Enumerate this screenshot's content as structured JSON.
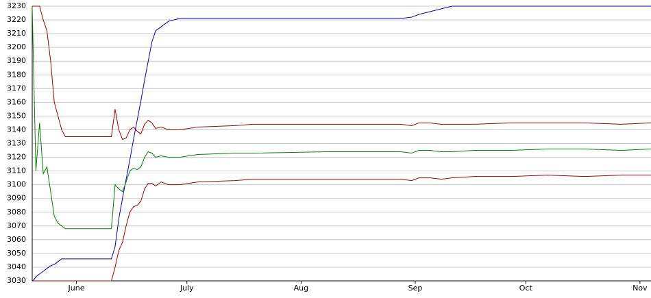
{
  "chart_data": {
    "type": "line",
    "x": [
      0,
      0.5,
      1,
      2,
      3,
      4,
      5,
      6,
      7,
      8,
      9,
      10,
      12,
      16,
      20,
      21.5,
      22.5,
      23.5,
      24.5,
      25.5,
      26.5,
      27.5,
      28.5,
      29.5,
      30.5,
      31.5,
      32.5,
      33.5,
      35,
      37,
      40,
      45,
      55,
      60,
      80,
      100,
      103,
      105,
      108,
      111,
      114,
      120,
      130,
      140,
      150,
      160,
      168
    ],
    "series": [
      {
        "color": "#0000b4",
        "values": [
          3030,
          3031,
          3033,
          3035,
          3037,
          3039,
          3041,
          3042,
          3044,
          3046,
          3046,
          3046,
          3046,
          3046,
          3046,
          3046,
          3055,
          3075,
          3090,
          3104,
          3118,
          3133,
          3147,
          3161,
          3176,
          3190,
          3204,
          3212,
          3215,
          3219,
          3221,
          3221,
          3221,
          3221,
          3221,
          3221,
          3222,
          3224,
          3226,
          3228,
          3230,
          3230,
          3230,
          3230,
          3230,
          3230,
          3230
        ]
      },
      {
        "color": "#a00000",
        "values": [
          3230,
          3230,
          3230,
          3230,
          3220,
          3212,
          3190,
          3160,
          3150,
          3140,
          3135,
          3135,
          3135,
          3135,
          3135,
          3135,
          3155,
          3140,
          3133,
          3134,
          3140,
          3142,
          3139,
          3137,
          3144,
          3147,
          3145,
          3141,
          3142,
          3140,
          3140,
          3142,
          3143,
          3144,
          3144,
          3144,
          3143,
          3145,
          3145,
          3144,
          3144,
          3144,
          3145,
          3145,
          3145,
          3144,
          3145
        ]
      },
      {
        "color": "#008000",
        "values": [
          3230,
          3170,
          3110,
          3145,
          3108,
          3113,
          3095,
          3077,
          3072,
          3070,
          3068,
          3068,
          3068,
          3068,
          3068,
          3068,
          3100,
          3097,
          3095,
          3102,
          3110,
          3112,
          3111,
          3113,
          3120,
          3124,
          3123,
          3120,
          3121,
          3120,
          3120,
          3122,
          3123,
          3123,
          3124,
          3124,
          3123,
          3125,
          3125,
          3124,
          3124,
          3125,
          3125,
          3126,
          3126,
          3125,
          3126
        ]
      },
      {
        "color": "#a00000",
        "values": [
          3030,
          3030,
          3030,
          3030,
          3030,
          3030,
          3030,
          3030,
          3030,
          3030,
          3030,
          3030,
          3030,
          3030,
          3030,
          3030,
          3040,
          3052,
          3058,
          3070,
          3080,
          3084,
          3085,
          3088,
          3097,
          3101,
          3101,
          3099,
          3102,
          3100,
          3100,
          3102,
          3103,
          3104,
          3104,
          3104,
          3103,
          3105,
          3105,
          3104,
          3105,
          3106,
          3106,
          3107,
          3106,
          3107,
          3107
        ]
      }
    ],
    "xlim": [
      0,
      168
    ],
    "xticks": [
      {
        "value": 12,
        "label": "June"
      },
      {
        "value": 42,
        "label": "July"
      },
      {
        "value": 73,
        "label": "Aug"
      },
      {
        "value": 104,
        "label": "Sep"
      },
      {
        "value": 134,
        "label": "Oct"
      },
      {
        "value": 165,
        "label": "Nov"
      }
    ],
    "ylim": [
      3030,
      3230
    ],
    "yticks": [
      3030,
      3040,
      3050,
      3060,
      3070,
      3080,
      3090,
      3100,
      3110,
      3120,
      3130,
      3140,
      3150,
      3160,
      3170,
      3180,
      3190,
      3200,
      3210,
      3220,
      3230
    ],
    "grid": true
  }
}
